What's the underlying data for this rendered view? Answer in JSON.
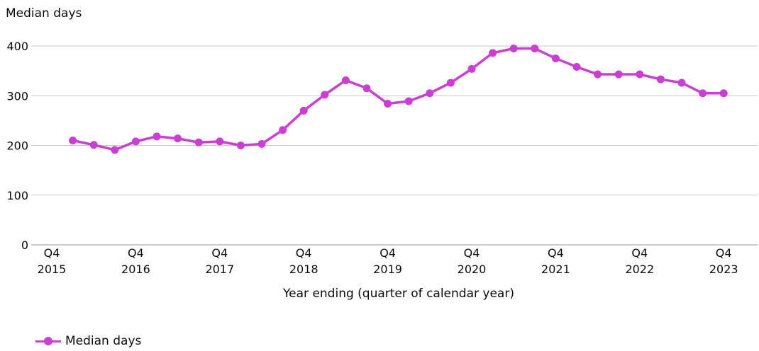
{
  "chart_data": {
    "type": "line",
    "ylabel": "Median days",
    "xlabel": "Year ending (quarter of calendar year)",
    "ylim": [
      0,
      400
    ],
    "yticks": [
      0,
      100,
      200,
      300,
      400
    ],
    "grid": true,
    "legend_position": "bottom-left",
    "x_tick_labels": [
      {
        "index": 0,
        "line1": "Q4",
        "line2": "2015"
      },
      {
        "index": 4,
        "line1": "Q4",
        "line2": "2016"
      },
      {
        "index": 8,
        "line1": "Q4",
        "line2": "2017"
      },
      {
        "index": 12,
        "line1": "Q4",
        "line2": "2018"
      },
      {
        "index": 16,
        "line1": "Q4",
        "line2": "2019"
      },
      {
        "index": 20,
        "line1": "Q4",
        "line2": "2020"
      },
      {
        "index": 24,
        "line1": "Q4",
        "line2": "2021"
      },
      {
        "index": 28,
        "line1": "Q4",
        "line2": "2022"
      },
      {
        "index": 32,
        "line1": "Q4",
        "line2": "2023"
      }
    ],
    "series": [
      {
        "name": "Median days",
        "color": "#ca3ed4",
        "start_index": 1,
        "values": [
          210,
          201,
          191,
          208,
          218,
          214,
          206,
          208,
          200,
          203,
          231,
          270,
          302,
          331,
          315,
          284,
          289,
          305,
          326,
          354,
          386,
          395,
          395,
          375,
          358,
          343,
          343,
          343,
          333,
          326,
          305,
          305
        ]
      }
    ]
  }
}
